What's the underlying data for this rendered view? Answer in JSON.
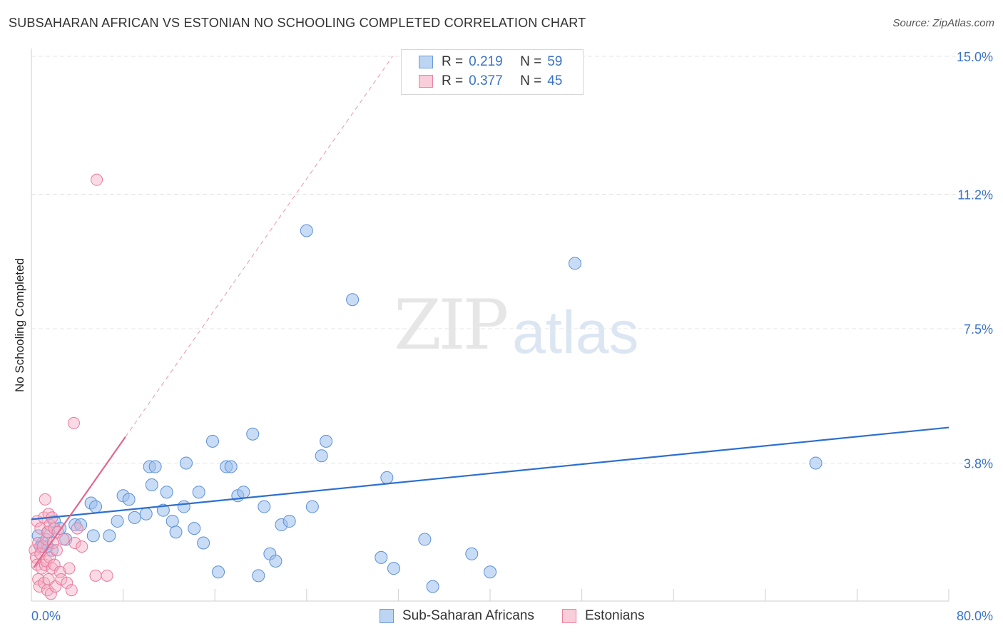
{
  "title": "SUBSAHARAN AFRICAN VS ESTONIAN NO SCHOOLING COMPLETED CORRELATION CHART",
  "source": "Source: ZipAtlas.com",
  "watermark": {
    "zip": "ZIP",
    "atlas": "atlas"
  },
  "colors": {
    "blue": "#9cc0ec",
    "blue_stroke": "#5b8fd6",
    "blue_line": "#2d6fcf",
    "pink": "#f5b0c5",
    "pink_stroke": "#e8799b",
    "pink_line": "#e0688f",
    "axis_text": "#3b73c8",
    "grid": "#e4e4e4"
  },
  "stats_legend": [
    {
      "r_label": "R = ",
      "r_value": "0.219",
      "n_label": "N = ",
      "n_value": "59"
    },
    {
      "r_label": "R = ",
      "r_value": "0.377",
      "n_label": "N = ",
      "n_value": "45"
    }
  ],
  "bottom_legend": [
    "Sub-Saharan Africans",
    "Estonians"
  ],
  "chart_data": {
    "type": "scatter",
    "title": "SUBSAHARAN AFRICAN VS ESTONIAN NO SCHOOLING COMPLETED CORRELATION CHART",
    "xlabel": "",
    "ylabel": "No Schooling Completed",
    "xlim": [
      0,
      80
    ],
    "ylim": [
      0,
      15.0
    ],
    "x_tick_labels": [
      "0.0%",
      "80.0%"
    ],
    "y_ticks": [
      3.8,
      7.5,
      11.2,
      15.0
    ],
    "y_tick_labels": [
      "3.8%",
      "7.5%",
      "11.2%",
      "15.0%"
    ],
    "grid": true,
    "series": [
      {
        "name": "Sub-Saharan Africans",
        "r": 0.219,
        "n": 59,
        "trend": {
          "x": [
            0,
            80
          ],
          "y": [
            2.25,
            4.78
          ]
        },
        "points": [
          [
            0.8,
            1.5
          ],
          [
            1.0,
            1.6
          ],
          [
            1.4,
            1.5
          ],
          [
            1.8,
            1.4
          ],
          [
            2.0,
            2.2
          ],
          [
            2.5,
            2.0
          ],
          [
            3.0,
            1.7
          ],
          [
            3.8,
            2.1
          ],
          [
            4.3,
            2.1
          ],
          [
            5.2,
            2.7
          ],
          [
            5.6,
            2.6
          ],
          [
            5.4,
            1.8
          ],
          [
            6.8,
            1.8
          ],
          [
            7.5,
            2.2
          ],
          [
            8.0,
            2.9
          ],
          [
            8.5,
            2.8
          ],
          [
            9.0,
            2.3
          ],
          [
            10.0,
            2.4
          ],
          [
            10.5,
            3.2
          ],
          [
            10.3,
            3.7
          ],
          [
            10.8,
            3.7
          ],
          [
            11.5,
            2.5
          ],
          [
            11.8,
            3.0
          ],
          [
            12.3,
            2.2
          ],
          [
            12.6,
            1.9
          ],
          [
            13.3,
            2.6
          ],
          [
            13.5,
            3.8
          ],
          [
            14.2,
            2.0
          ],
          [
            14.6,
            3.0
          ],
          [
            15.0,
            1.6
          ],
          [
            15.8,
            4.4
          ],
          [
            16.3,
            0.8
          ],
          [
            17.0,
            3.7
          ],
          [
            17.4,
            3.7
          ],
          [
            18.0,
            2.9
          ],
          [
            18.5,
            3.0
          ],
          [
            19.3,
            4.6
          ],
          [
            19.8,
            0.7
          ],
          [
            20.3,
            2.6
          ],
          [
            20.8,
            1.3
          ],
          [
            21.3,
            1.1
          ],
          [
            21.8,
            2.1
          ],
          [
            22.5,
            2.2
          ],
          [
            24.0,
            10.2
          ],
          [
            24.5,
            2.6
          ],
          [
            25.3,
            4.0
          ],
          [
            25.7,
            4.4
          ],
          [
            28.0,
            8.3
          ],
          [
            30.5,
            1.2
          ],
          [
            31.0,
            3.4
          ],
          [
            31.6,
            0.9
          ],
          [
            34.3,
            1.7
          ],
          [
            35.0,
            0.4
          ],
          [
            38.4,
            1.3
          ],
          [
            40.0,
            0.8
          ],
          [
            47.4,
            9.3
          ],
          [
            68.4,
            3.8
          ],
          [
            0.6,
            1.8
          ],
          [
            1.5,
            1.9
          ]
        ]
      },
      {
        "name": "Estonians",
        "r": 0.377,
        "n": 45,
        "trend": {
          "x": [
            0.2,
            8.2
          ],
          "y": [
            0.92,
            4.52
          ]
        },
        "trend_extended": {
          "x": [
            8.2,
            31.5
          ],
          "y": [
            4.52,
            15.0
          ]
        },
        "points": [
          [
            0.3,
            1.4
          ],
          [
            0.4,
            1.2
          ],
          [
            0.5,
            1.0
          ],
          [
            0.5,
            2.2
          ],
          [
            0.6,
            0.6
          ],
          [
            0.6,
            1.6
          ],
          [
            0.7,
            0.4
          ],
          [
            0.8,
            1.3
          ],
          [
            0.8,
            2.0
          ],
          [
            0.9,
            0.9
          ],
          [
            1.0,
            1.5
          ],
          [
            1.1,
            0.5
          ],
          [
            1.1,
            2.3
          ],
          [
            1.2,
            1.0
          ],
          [
            1.2,
            2.8
          ],
          [
            1.3,
            1.1
          ],
          [
            1.3,
            1.7
          ],
          [
            1.4,
            0.3
          ],
          [
            1.4,
            1.9
          ],
          [
            1.5,
            0.6
          ],
          [
            1.5,
            2.4
          ],
          [
            1.6,
            1.2
          ],
          [
            1.6,
            2.1
          ],
          [
            1.7,
            0.2
          ],
          [
            1.8,
            0.9
          ],
          [
            1.8,
            2.3
          ],
          [
            1.9,
            1.6
          ],
          [
            2.0,
            1.0
          ],
          [
            2.0,
            2.0
          ],
          [
            2.1,
            0.4
          ],
          [
            2.2,
            1.4
          ],
          [
            2.3,
            1.9
          ],
          [
            2.5,
            0.8
          ],
          [
            2.6,
            0.6
          ],
          [
            2.8,
            1.7
          ],
          [
            3.1,
            0.5
          ],
          [
            3.3,
            0.9
          ],
          [
            3.5,
            0.3
          ],
          [
            3.8,
            1.6
          ],
          [
            4.0,
            2.0
          ],
          [
            4.4,
            1.5
          ],
          [
            3.7,
            4.9
          ],
          [
            5.6,
            0.7
          ],
          [
            6.6,
            0.7
          ],
          [
            5.7,
            11.6
          ]
        ]
      }
    ]
  }
}
